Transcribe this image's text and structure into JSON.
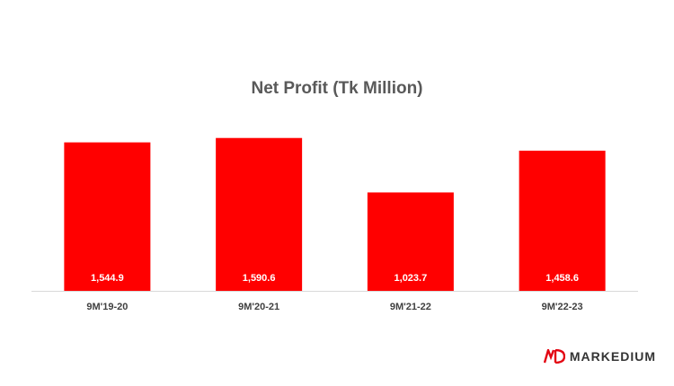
{
  "chart_data": {
    "type": "bar",
    "title": "Net Profit (Tk Million)",
    "categories": [
      "9M'19-20",
      "9M'20-21",
      "9M'21-22",
      "9M'22-23"
    ],
    "values": [
      1544.9,
      1590.6,
      1023.7,
      1458.6
    ],
    "value_labels": [
      "1,544.9",
      "1,590.6",
      "1,023.7",
      "1,458.6"
    ],
    "xlabel": "",
    "ylabel": "",
    "ylim": [
      0,
      1700
    ],
    "grid": false,
    "bar_color": "#FF0000"
  },
  "brand": {
    "name": "MARKEDIUM",
    "logo_icon": "markedium-logo-icon",
    "logo_color": "#E30613"
  }
}
